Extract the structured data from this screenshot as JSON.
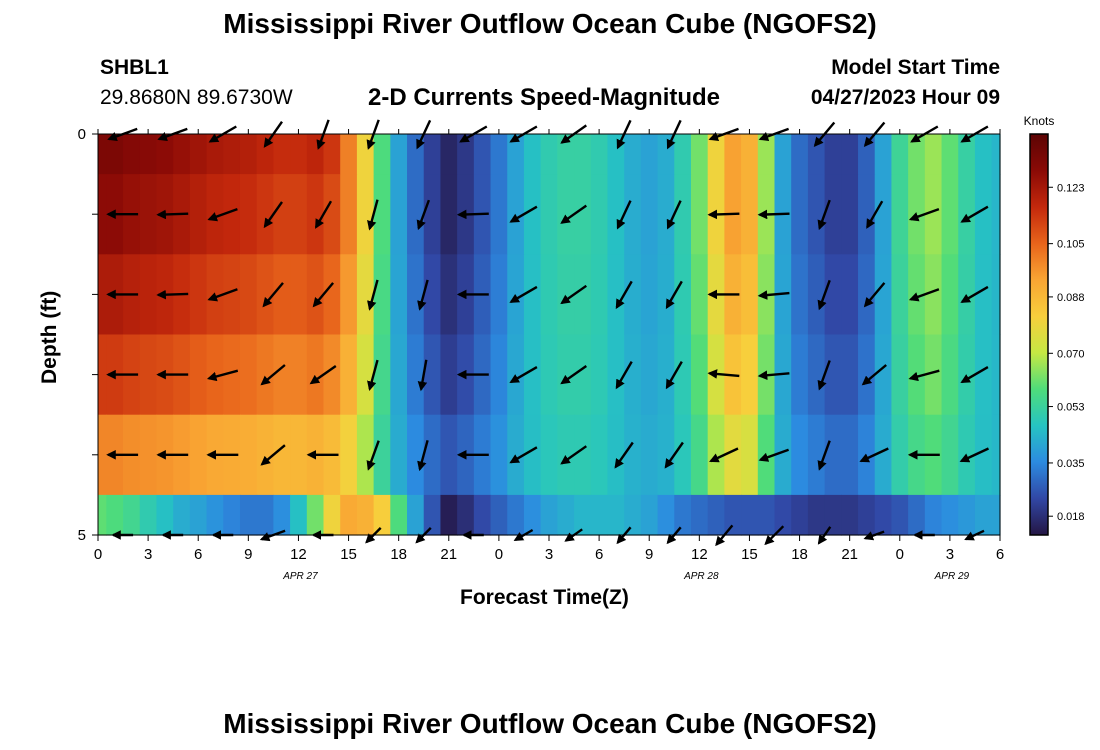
{
  "page_title": "Mississippi River Outflow Ocean Cube (NGOFS2)",
  "page_title_repeat": "Mississippi River Outflow Ocean Cube (NGOFS2)",
  "station": {
    "id": "SHBL1",
    "coords": "29.8680N  89.6730W"
  },
  "model_start": {
    "label": "Model Start Time",
    "value": "04/27/2023 Hour 09"
  },
  "chart_data": {
    "type": "heatmap",
    "title": "2-D Currents Speed-Magnitude",
    "xlabel": "Forecast Time(Z)",
    "ylabel": "Depth (ft)",
    "y_tick_labels": [
      "0",
      "5"
    ],
    "ylim": [
      0,
      5
    ],
    "x_tick_labels": [
      "0",
      "3",
      "6",
      "9",
      "12",
      "15",
      "18",
      "21",
      "0",
      "3",
      "6",
      "9",
      "12",
      "15",
      "18",
      "21",
      "0",
      "3",
      "6"
    ],
    "x_hours_range": [
      0,
      54
    ],
    "date_labels": [
      {
        "text": "APR 27",
        "hour": 12
      },
      {
        "text": "APR 28",
        "hour": 36
      },
      {
        "text": "APR 29",
        "hour": 51
      }
    ],
    "colorbar": {
      "units": "Knots",
      "range": [
        0.012,
        0.14
      ],
      "ticks": [
        "0.123",
        "0.105",
        "0.088",
        "0.070",
        "0.053",
        "0.035",
        "0.018"
      ],
      "tick_values": [
        0.123,
        0.105,
        0.088,
        0.07,
        0.053,
        0.035,
        0.018
      ],
      "colors": [
        "#241644",
        "#3147a5",
        "#2c8be0",
        "#26c4c2",
        "#4fdc7a",
        "#c6e843",
        "#f7cf3c",
        "#f9a533",
        "#e8641b",
        "#c3280c",
        "#8a0a06",
        "#5c0404"
      ]
    },
    "layer_depths": [
      0.5,
      1.5,
      2.5,
      3.5,
      4.5
    ],
    "hours": [
      0,
      1,
      2,
      3,
      4,
      5,
      6,
      7,
      8,
      9,
      10,
      11,
      12,
      13,
      14,
      15,
      16,
      17,
      18,
      19,
      20,
      21,
      22,
      23,
      24,
      25,
      26,
      27,
      28,
      29,
      30,
      31,
      32,
      33,
      34,
      35,
      36,
      37,
      38,
      39,
      40,
      41,
      42,
      43,
      44,
      45,
      46,
      47,
      48,
      49,
      50,
      51,
      52,
      53,
      54
    ],
    "speed_profile": [
      0.128,
      0.128,
      0.126,
      0.125,
      0.124,
      0.122,
      0.12,
      0.118,
      0.117,
      0.116,
      0.114,
      0.112,
      0.112,
      0.114,
      0.11,
      0.1,
      0.08,
      0.058,
      0.04,
      0.03,
      0.022,
      0.016,
      0.02,
      0.026,
      0.032,
      0.04,
      0.046,
      0.05,
      0.052,
      0.052,
      0.05,
      0.046,
      0.042,
      0.04,
      0.042,
      0.05,
      0.062,
      0.08,
      0.094,
      0.09,
      0.066,
      0.04,
      0.03,
      0.026,
      0.022,
      0.022,
      0.028,
      0.04,
      0.054,
      0.062,
      0.066,
      0.06,
      0.052,
      0.046,
      0.044
    ],
    "layer_scale": [
      1.0,
      1.0,
      0.92,
      0.82,
      0.65
    ],
    "bottom_speed": [
      0.06,
      0.058,
      0.055,
      0.05,
      0.046,
      0.042,
      0.04,
      0.037,
      0.034,
      0.032,
      0.032,
      0.036,
      0.046,
      0.062,
      0.08,
      0.092,
      0.09,
      0.082,
      0.058,
      0.04,
      0.026,
      0.014,
      0.018,
      0.024,
      0.028,
      0.032,
      0.036,
      0.04,
      0.042,
      0.044,
      0.044,
      0.044,
      0.042,
      0.04,
      0.036,
      0.032,
      0.03,
      0.028,
      0.026,
      0.026,
      0.026,
      0.024,
      0.022,
      0.02,
      0.02,
      0.02,
      0.022,
      0.024,
      0.026,
      0.03,
      0.034,
      0.036,
      0.038,
      0.04,
      0.04
    ],
    "arrow_hours": [
      1.5,
      4.5,
      7.5,
      10.5,
      13.5,
      16.5,
      19.5,
      22.5,
      25.5,
      28.5,
      31.5,
      34.5,
      37.5,
      40.5,
      43.5,
      46.5,
      49.5,
      52.5
    ],
    "arrow_angle_deg": [
      [
        200,
        200,
        210,
        235,
        250,
        250,
        245,
        210,
        210,
        215,
        245,
        245,
        200,
        200,
        230,
        230,
        210,
        210
      ],
      [
        180,
        182,
        200,
        235,
        240,
        255,
        250,
        182,
        210,
        215,
        245,
        245,
        182,
        182,
        250,
        240,
        200,
        210
      ],
      [
        180,
        182,
        200,
        230,
        230,
        255,
        255,
        180,
        210,
        215,
        240,
        240,
        180,
        185,
        250,
        230,
        200,
        210
      ],
      [
        180,
        180,
        195,
        220,
        215,
        255,
        260,
        180,
        210,
        215,
        240,
        240,
        175,
        185,
        250,
        220,
        195,
        210
      ],
      [
        180,
        180,
        180,
        220,
        180,
        250,
        255,
        180,
        210,
        215,
        235,
        235,
        205,
        200,
        250,
        205,
        180,
        205
      ],
      [
        180,
        180,
        180,
        200,
        180,
        225,
        225,
        180,
        210,
        215,
        230,
        230,
        230,
        225,
        235,
        200,
        180,
        205
      ]
    ],
    "arrow_length": [
      [
        30,
        30,
        30,
        30,
        30,
        30,
        30,
        30,
        30,
        30,
        30,
        30,
        30,
        30,
        30,
        30,
        30,
        30
      ],
      [
        30,
        30,
        30,
        30,
        30,
        30,
        30,
        30,
        30,
        30,
        30,
        30,
        30,
        30,
        30,
        30,
        30,
        30
      ],
      [
        30,
        30,
        30,
        30,
        30,
        30,
        30,
        30,
        30,
        30,
        30,
        30,
        30,
        30,
        30,
        30,
        30,
        30
      ],
      [
        30,
        30,
        30,
        30,
        30,
        30,
        30,
        30,
        30,
        30,
        30,
        30,
        30,
        30,
        30,
        30,
        30,
        30
      ],
      [
        30,
        30,
        30,
        30,
        30,
        30,
        30,
        30,
        30,
        30,
        30,
        30,
        30,
        30,
        30,
        30,
        30,
        30
      ],
      [
        20,
        20,
        20,
        25,
        20,
        20,
        20,
        20,
        20,
        20,
        20,
        20,
        25,
        25,
        20,
        20,
        20,
        20
      ]
    ]
  }
}
